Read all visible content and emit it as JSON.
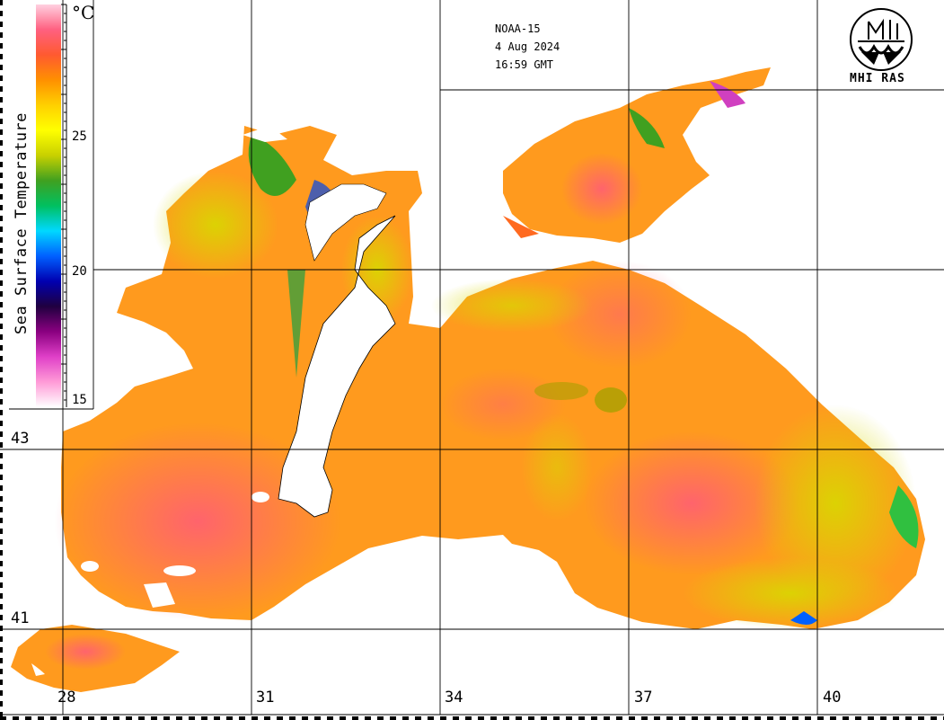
{
  "satellite": {
    "name": "NOAA-15",
    "date": "4 Aug 2024",
    "time": "16:59 GMT"
  },
  "logo": {
    "text": "MHI RAS",
    "icon": "mhi-ras-emblem-icon"
  },
  "colorbar": {
    "title": "Sea Surface Temperature",
    "unit": "°C",
    "ticks": [
      "25",
      "20",
      "15"
    ],
    "min": 15,
    "max": 30,
    "colors": [
      "#ffffff",
      "#ff9bd7",
      "#e040c8",
      "#8a0080",
      "#200040",
      "#0000b0",
      "#0060ff",
      "#00d8ff",
      "#00c060",
      "#40a020",
      "#c8d000",
      "#ffff00",
      "#ffd000",
      "#ff9000",
      "#ff5a30",
      "#ff6080",
      "#ffd0e0"
    ]
  },
  "latitudes": [
    "43",
    "41"
  ],
  "longitudes": [
    "28",
    "31",
    "34",
    "37",
    "40"
  ],
  "colors": {
    "sea_base": "#ff9a1e",
    "sea_warm": "#ff6a5a",
    "sea_cool": "#d8d800",
    "sea_cold": "#20b040",
    "land": "#ffffff",
    "grid": "#000000"
  }
}
